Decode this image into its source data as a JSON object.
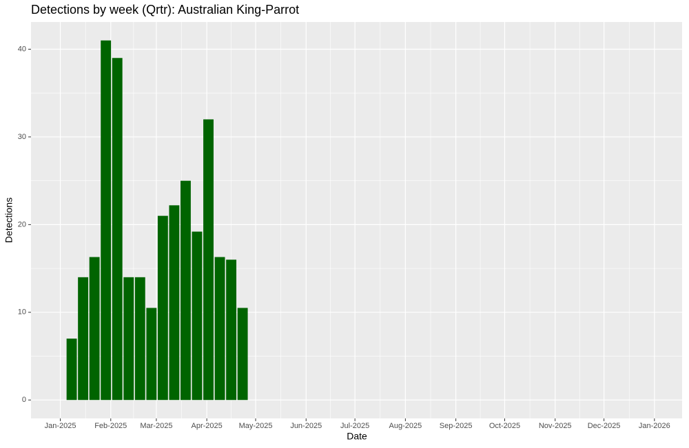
{
  "chart_data": {
    "type": "bar",
    "title": "Detections by week (Qrtr): Australian King-Parrot",
    "x_label": "Date",
    "y_label": "Detections",
    "x": [
      7,
      14,
      21,
      28,
      35,
      42,
      49,
      56,
      63,
      70,
      77,
      84,
      91,
      98,
      105,
      112
    ],
    "values": [
      7,
      14,
      16.3,
      41,
      39,
      14,
      14,
      10.5,
      21,
      22.2,
      25,
      19.2,
      32,
      16.3,
      16,
      10.5
    ],
    "color": "#006400",
    "xlim": [
      -18,
      382
    ],
    "xticks": [
      {
        "value": 0,
        "label": "Jan-2025"
      },
      {
        "value": 31,
        "label": "Feb-2025"
      },
      {
        "value": 59,
        "label": "Mar-2025"
      },
      {
        "value": 90,
        "label": "Apr-2025"
      },
      {
        "value": 120,
        "label": "May-2025"
      },
      {
        "value": 151,
        "label": "Jun-2025"
      },
      {
        "value": 181,
        "label": "Jul-2025"
      },
      {
        "value": 212,
        "label": "Aug-2025"
      },
      {
        "value": 243,
        "label": "Sep-2025"
      },
      {
        "value": 273,
        "label": "Oct-2025"
      },
      {
        "value": 304,
        "label": "Nov-2025"
      },
      {
        "value": 334,
        "label": "Dec-2025"
      },
      {
        "value": 365,
        "label": "Jan-2026"
      }
    ],
    "ylim": [
      -2.1,
      43.1
    ],
    "yticks": [
      0,
      10,
      20,
      30,
      40
    ],
    "grid": true
  }
}
